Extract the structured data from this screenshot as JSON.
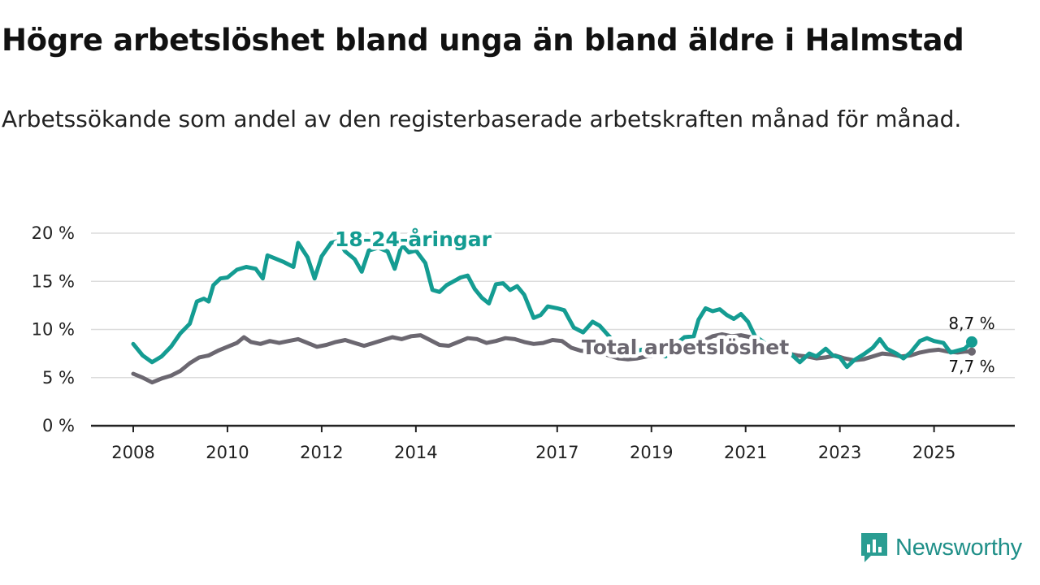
{
  "title": "Högre arbetslöshet bland unga än bland äldre i Halmstad",
  "subtitle": "Arbetssökande som andel av den registerbaserade arbetskraften månad för månad.",
  "brand": "Newsworthy",
  "colors": {
    "young": "#149c92",
    "total": "#6b6770",
    "brand": "#1f8f88"
  },
  "chart_data": {
    "type": "line",
    "ylim": [
      0,
      20
    ],
    "yticks": [
      0,
      5,
      10,
      15,
      20
    ],
    "ytick_labels": [
      "0 %",
      "5 %",
      "10 %",
      "15 %",
      "20 %"
    ],
    "xlim": [
      2008,
      2026.2
    ],
    "xticks": [
      2008,
      2010,
      2012,
      2014,
      2017,
      2019,
      2021,
      2023,
      2025
    ],
    "xtick_labels": [
      "2008",
      "2010",
      "2012",
      "2014",
      "2017",
      "2019",
      "2021",
      "2023",
      "2025"
    ],
    "series": [
      {
        "name": "18-24-åringar",
        "color": "#149c92",
        "label_at": 2013.0,
        "end_label": "8,7 %",
        "points": [
          [
            2008.0,
            8.5
          ],
          [
            2008.2,
            7.3
          ],
          [
            2008.4,
            6.6
          ],
          [
            2008.6,
            7.2
          ],
          [
            2008.8,
            8.2
          ],
          [
            2009.0,
            9.6
          ],
          [
            2009.2,
            10.6
          ],
          [
            2009.35,
            12.9
          ],
          [
            2009.5,
            13.2
          ],
          [
            2009.6,
            12.9
          ],
          [
            2009.7,
            14.6
          ],
          [
            2009.85,
            15.3
          ],
          [
            2010.0,
            15.4
          ],
          [
            2010.2,
            16.2
          ],
          [
            2010.4,
            16.5
          ],
          [
            2010.6,
            16.3
          ],
          [
            2010.75,
            15.3
          ],
          [
            2010.85,
            17.7
          ],
          [
            2011.0,
            17.4
          ],
          [
            2011.2,
            17.0
          ],
          [
            2011.4,
            16.5
          ],
          [
            2011.5,
            19.0
          ],
          [
            2011.7,
            17.5
          ],
          [
            2011.85,
            15.3
          ],
          [
            2012.0,
            17.6
          ],
          [
            2012.2,
            19.0
          ],
          [
            2012.35,
            19.2
          ],
          [
            2012.5,
            18.1
          ],
          [
            2012.7,
            17.3
          ],
          [
            2012.85,
            16.0
          ],
          [
            2013.0,
            18.2
          ],
          [
            2013.2,
            18.5
          ],
          [
            2013.4,
            18.1
          ],
          [
            2013.55,
            16.3
          ],
          [
            2013.7,
            18.8
          ],
          [
            2013.85,
            18.0
          ],
          [
            2014.0,
            18.2
          ],
          [
            2014.2,
            16.9
          ],
          [
            2014.35,
            14.1
          ],
          [
            2014.5,
            13.9
          ],
          [
            2014.65,
            14.6
          ],
          [
            2014.8,
            15.0
          ],
          [
            2014.95,
            15.4
          ],
          [
            2015.1,
            15.6
          ],
          [
            2015.25,
            14.2
          ],
          [
            2015.4,
            13.3
          ],
          [
            2015.55,
            12.7
          ],
          [
            2015.7,
            14.7
          ],
          [
            2015.85,
            14.8
          ],
          [
            2016.0,
            14.1
          ],
          [
            2016.15,
            14.5
          ],
          [
            2016.3,
            13.6
          ],
          [
            2016.5,
            11.2
          ],
          [
            2016.65,
            11.5
          ],
          [
            2016.8,
            12.4
          ],
          [
            2017.0,
            12.2
          ],
          [
            2017.15,
            12.0
          ],
          [
            2017.35,
            10.2
          ],
          [
            2017.55,
            9.7
          ],
          [
            2017.75,
            10.8
          ],
          [
            2017.9,
            10.4
          ],
          [
            2018.1,
            9.3
          ],
          [
            2018.3,
            8.2
          ],
          [
            2018.5,
            7.8
          ],
          [
            2018.7,
            7.8
          ],
          [
            2018.9,
            8.0
          ],
          [
            2019.1,
            7.4
          ],
          [
            2019.3,
            7.2
          ],
          [
            2019.5,
            8.4
          ],
          [
            2019.7,
            9.2
          ],
          [
            2019.9,
            9.3
          ],
          [
            2020.0,
            11.0
          ],
          [
            2020.15,
            12.2
          ],
          [
            2020.3,
            11.9
          ],
          [
            2020.45,
            12.1
          ],
          [
            2020.6,
            11.5
          ],
          [
            2020.75,
            11.1
          ],
          [
            2020.9,
            11.6
          ],
          [
            2021.05,
            10.8
          ],
          [
            2021.2,
            9.3
          ],
          [
            2021.35,
            8.8
          ],
          [
            2021.5,
            8.2
          ],
          [
            2021.65,
            7.9
          ],
          [
            2021.8,
            7.7
          ],
          [
            2021.95,
            7.5
          ],
          [
            2022.15,
            6.6
          ],
          [
            2022.35,
            7.5
          ],
          [
            2022.5,
            7.2
          ],
          [
            2022.7,
            8.0
          ],
          [
            2022.85,
            7.3
          ],
          [
            2023.0,
            7.1
          ],
          [
            2023.15,
            6.1
          ],
          [
            2023.3,
            6.8
          ],
          [
            2023.5,
            7.4
          ],
          [
            2023.7,
            8.1
          ],
          [
            2023.85,
            9.0
          ],
          [
            2024.0,
            8.0
          ],
          [
            2024.2,
            7.5
          ],
          [
            2024.35,
            7.0
          ],
          [
            2024.5,
            7.6
          ],
          [
            2024.7,
            8.8
          ],
          [
            2024.85,
            9.1
          ],
          [
            2025.0,
            8.8
          ],
          [
            2025.2,
            8.6
          ],
          [
            2025.35,
            7.6
          ],
          [
            2025.5,
            7.8
          ],
          [
            2025.65,
            8.0
          ],
          [
            2025.8,
            8.7
          ]
        ]
      },
      {
        "name": "Total arbetslöshet",
        "color": "#6b6770",
        "label_at": 2018.9,
        "end_label": "7,7 %",
        "points": [
          [
            2008.0,
            5.4
          ],
          [
            2008.2,
            5.0
          ],
          [
            2008.4,
            4.5
          ],
          [
            2008.6,
            4.9
          ],
          [
            2008.8,
            5.2
          ],
          [
            2009.0,
            5.7
          ],
          [
            2009.2,
            6.5
          ],
          [
            2009.4,
            7.1
          ],
          [
            2009.6,
            7.3
          ],
          [
            2009.8,
            7.8
          ],
          [
            2010.0,
            8.2
          ],
          [
            2010.2,
            8.6
          ],
          [
            2010.35,
            9.2
          ],
          [
            2010.5,
            8.7
          ],
          [
            2010.7,
            8.5
          ],
          [
            2010.9,
            8.8
          ],
          [
            2011.1,
            8.6
          ],
          [
            2011.3,
            8.8
          ],
          [
            2011.5,
            9.0
          ],
          [
            2011.7,
            8.6
          ],
          [
            2011.9,
            8.2
          ],
          [
            2012.1,
            8.4
          ],
          [
            2012.3,
            8.7
          ],
          [
            2012.5,
            8.9
          ],
          [
            2012.7,
            8.6
          ],
          [
            2012.9,
            8.3
          ],
          [
            2013.1,
            8.6
          ],
          [
            2013.3,
            8.9
          ],
          [
            2013.5,
            9.2
          ],
          [
            2013.7,
            9.0
          ],
          [
            2013.9,
            9.3
          ],
          [
            2014.1,
            9.4
          ],
          [
            2014.3,
            8.9
          ],
          [
            2014.5,
            8.4
          ],
          [
            2014.7,
            8.3
          ],
          [
            2014.9,
            8.7
          ],
          [
            2015.1,
            9.1
          ],
          [
            2015.3,
            9.0
          ],
          [
            2015.5,
            8.6
          ],
          [
            2015.7,
            8.8
          ],
          [
            2015.9,
            9.1
          ],
          [
            2016.1,
            9.0
          ],
          [
            2016.3,
            8.7
          ],
          [
            2016.5,
            8.5
          ],
          [
            2016.7,
            8.6
          ],
          [
            2016.9,
            8.9
          ],
          [
            2017.1,
            8.8
          ],
          [
            2017.3,
            8.1
          ],
          [
            2017.5,
            7.8
          ],
          [
            2017.7,
            7.7
          ],
          [
            2017.9,
            7.6
          ],
          [
            2018.1,
            7.3
          ],
          [
            2018.3,
            7.0
          ],
          [
            2018.5,
            6.9
          ],
          [
            2018.7,
            7.0
          ],
          [
            2018.9,
            7.2
          ],
          [
            2019.1,
            7.3
          ],
          [
            2019.3,
            7.4
          ],
          [
            2019.5,
            7.6
          ],
          [
            2019.7,
            7.9
          ],
          [
            2019.9,
            8.4
          ],
          [
            2020.1,
            8.8
          ],
          [
            2020.3,
            9.3
          ],
          [
            2020.5,
            9.5
          ],
          [
            2020.7,
            9.3
          ],
          [
            2020.9,
            9.4
          ],
          [
            2021.1,
            9.2
          ],
          [
            2021.3,
            8.7
          ],
          [
            2021.5,
            8.2
          ],
          [
            2021.7,
            7.8
          ],
          [
            2021.9,
            7.5
          ],
          [
            2022.1,
            7.3
          ],
          [
            2022.3,
            7.2
          ],
          [
            2022.5,
            7.0
          ],
          [
            2022.7,
            7.1
          ],
          [
            2022.9,
            7.3
          ],
          [
            2023.1,
            7.0
          ],
          [
            2023.3,
            6.8
          ],
          [
            2023.5,
            6.9
          ],
          [
            2023.7,
            7.2
          ],
          [
            2023.9,
            7.5
          ],
          [
            2024.1,
            7.4
          ],
          [
            2024.3,
            7.2
          ],
          [
            2024.5,
            7.3
          ],
          [
            2024.7,
            7.6
          ],
          [
            2024.9,
            7.8
          ],
          [
            2025.1,
            7.9
          ],
          [
            2025.3,
            7.7
          ],
          [
            2025.5,
            7.6
          ],
          [
            2025.65,
            7.7
          ],
          [
            2025.8,
            7.7
          ]
        ]
      }
    ]
  }
}
